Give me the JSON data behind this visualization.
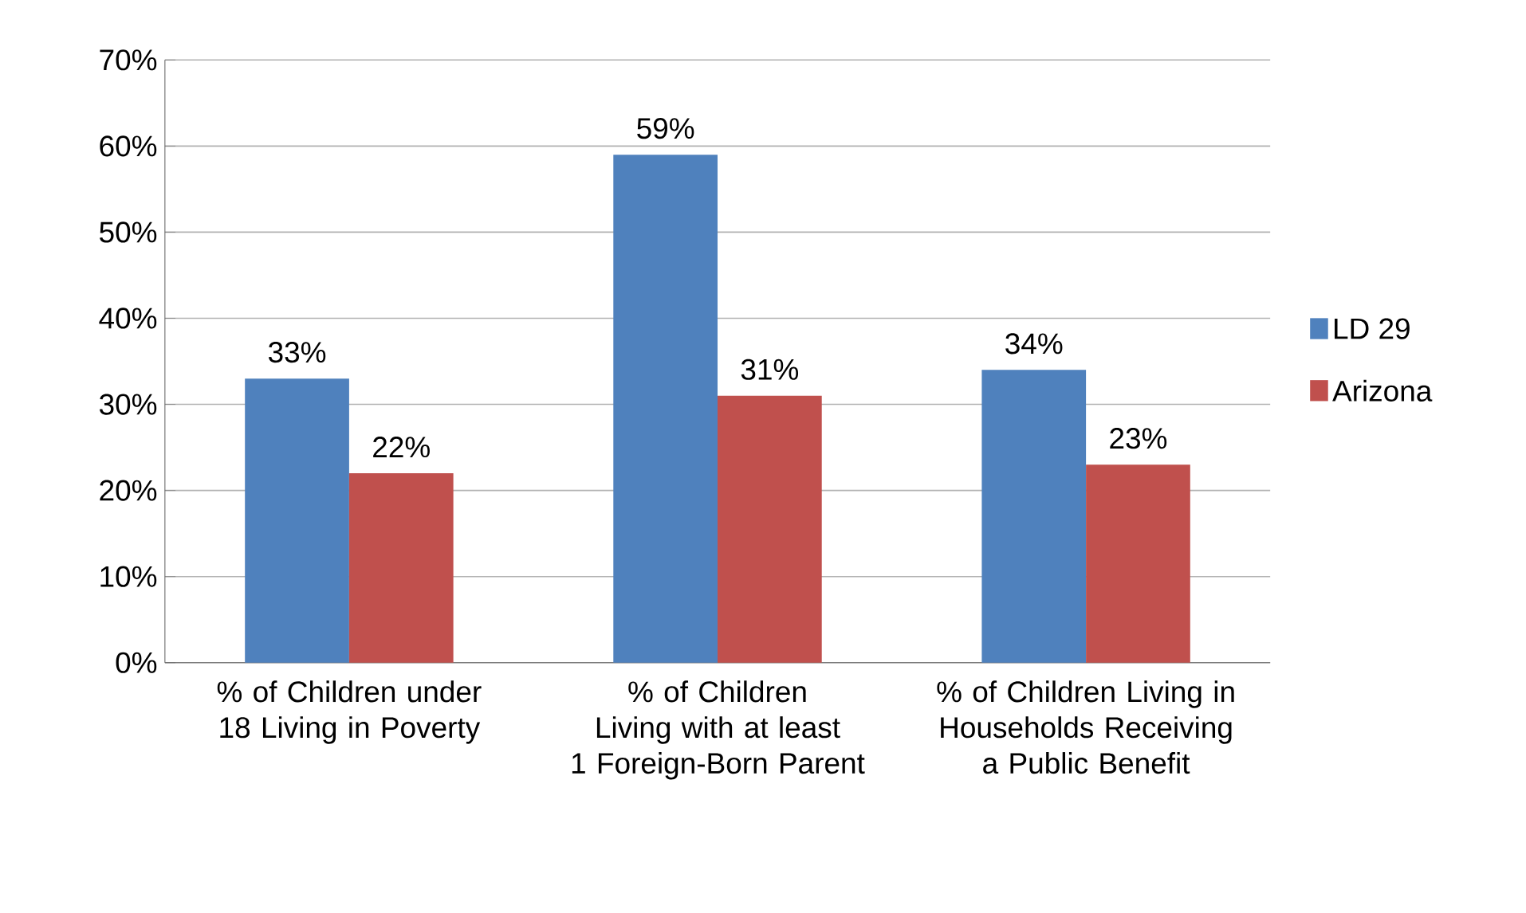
{
  "chart_data": {
    "type": "bar",
    "categories": [
      "% of Children under 18 Living in Poverty",
      "% of Children Living with at least 1 Foreign-Born Parent",
      "% of Children Living in Households Receiving a Public Benefit"
    ],
    "series": [
      {
        "name": "LD 29",
        "color": "#4f81bd",
        "values": [
          33,
          59,
          34
        ],
        "value_labels": [
          "33%",
          "59%",
          "34%"
        ]
      },
      {
        "name": "Arizona",
        "color": "#c0504d",
        "values": [
          22,
          31,
          23
        ],
        "value_labels": [
          "22%",
          "31%",
          "23%"
        ]
      }
    ],
    "ylim": [
      0,
      70
    ],
    "yticks": [
      {
        "value": 0,
        "label": "0%"
      },
      {
        "value": 10,
        "label": "10%"
      },
      {
        "value": 20,
        "label": "20%"
      },
      {
        "value": 30,
        "label": "30%"
      },
      {
        "value": 40,
        "label": "40%"
      },
      {
        "value": 50,
        "label": "50%"
      },
      {
        "value": 60,
        "label": "60%"
      },
      {
        "value": 70,
        "label": "70%"
      }
    ],
    "grid": "y",
    "legend": "right"
  }
}
